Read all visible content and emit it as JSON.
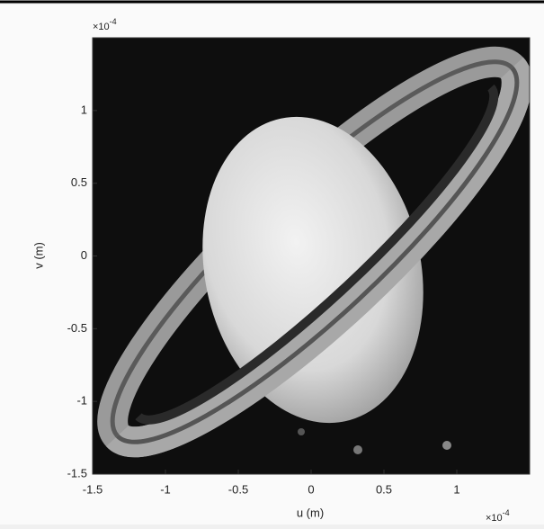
{
  "chart_data": {
    "type": "image",
    "x_label": "u (m)",
    "y_label": "v (m)",
    "x_exponent": {
      "base": "×10",
      "power": "-4"
    },
    "y_exponent": {
      "base": "×10",
      "power": "-4"
    },
    "xlim": [
      -1.5,
      1.5
    ],
    "ylim": [
      -1.5,
      1.5
    ],
    "xticks": [
      -1.5,
      -1,
      -0.5,
      0,
      0.5,
      1
    ],
    "yticks": [
      -1.5,
      -1,
      -0.5,
      0,
      0.5,
      1
    ]
  }
}
